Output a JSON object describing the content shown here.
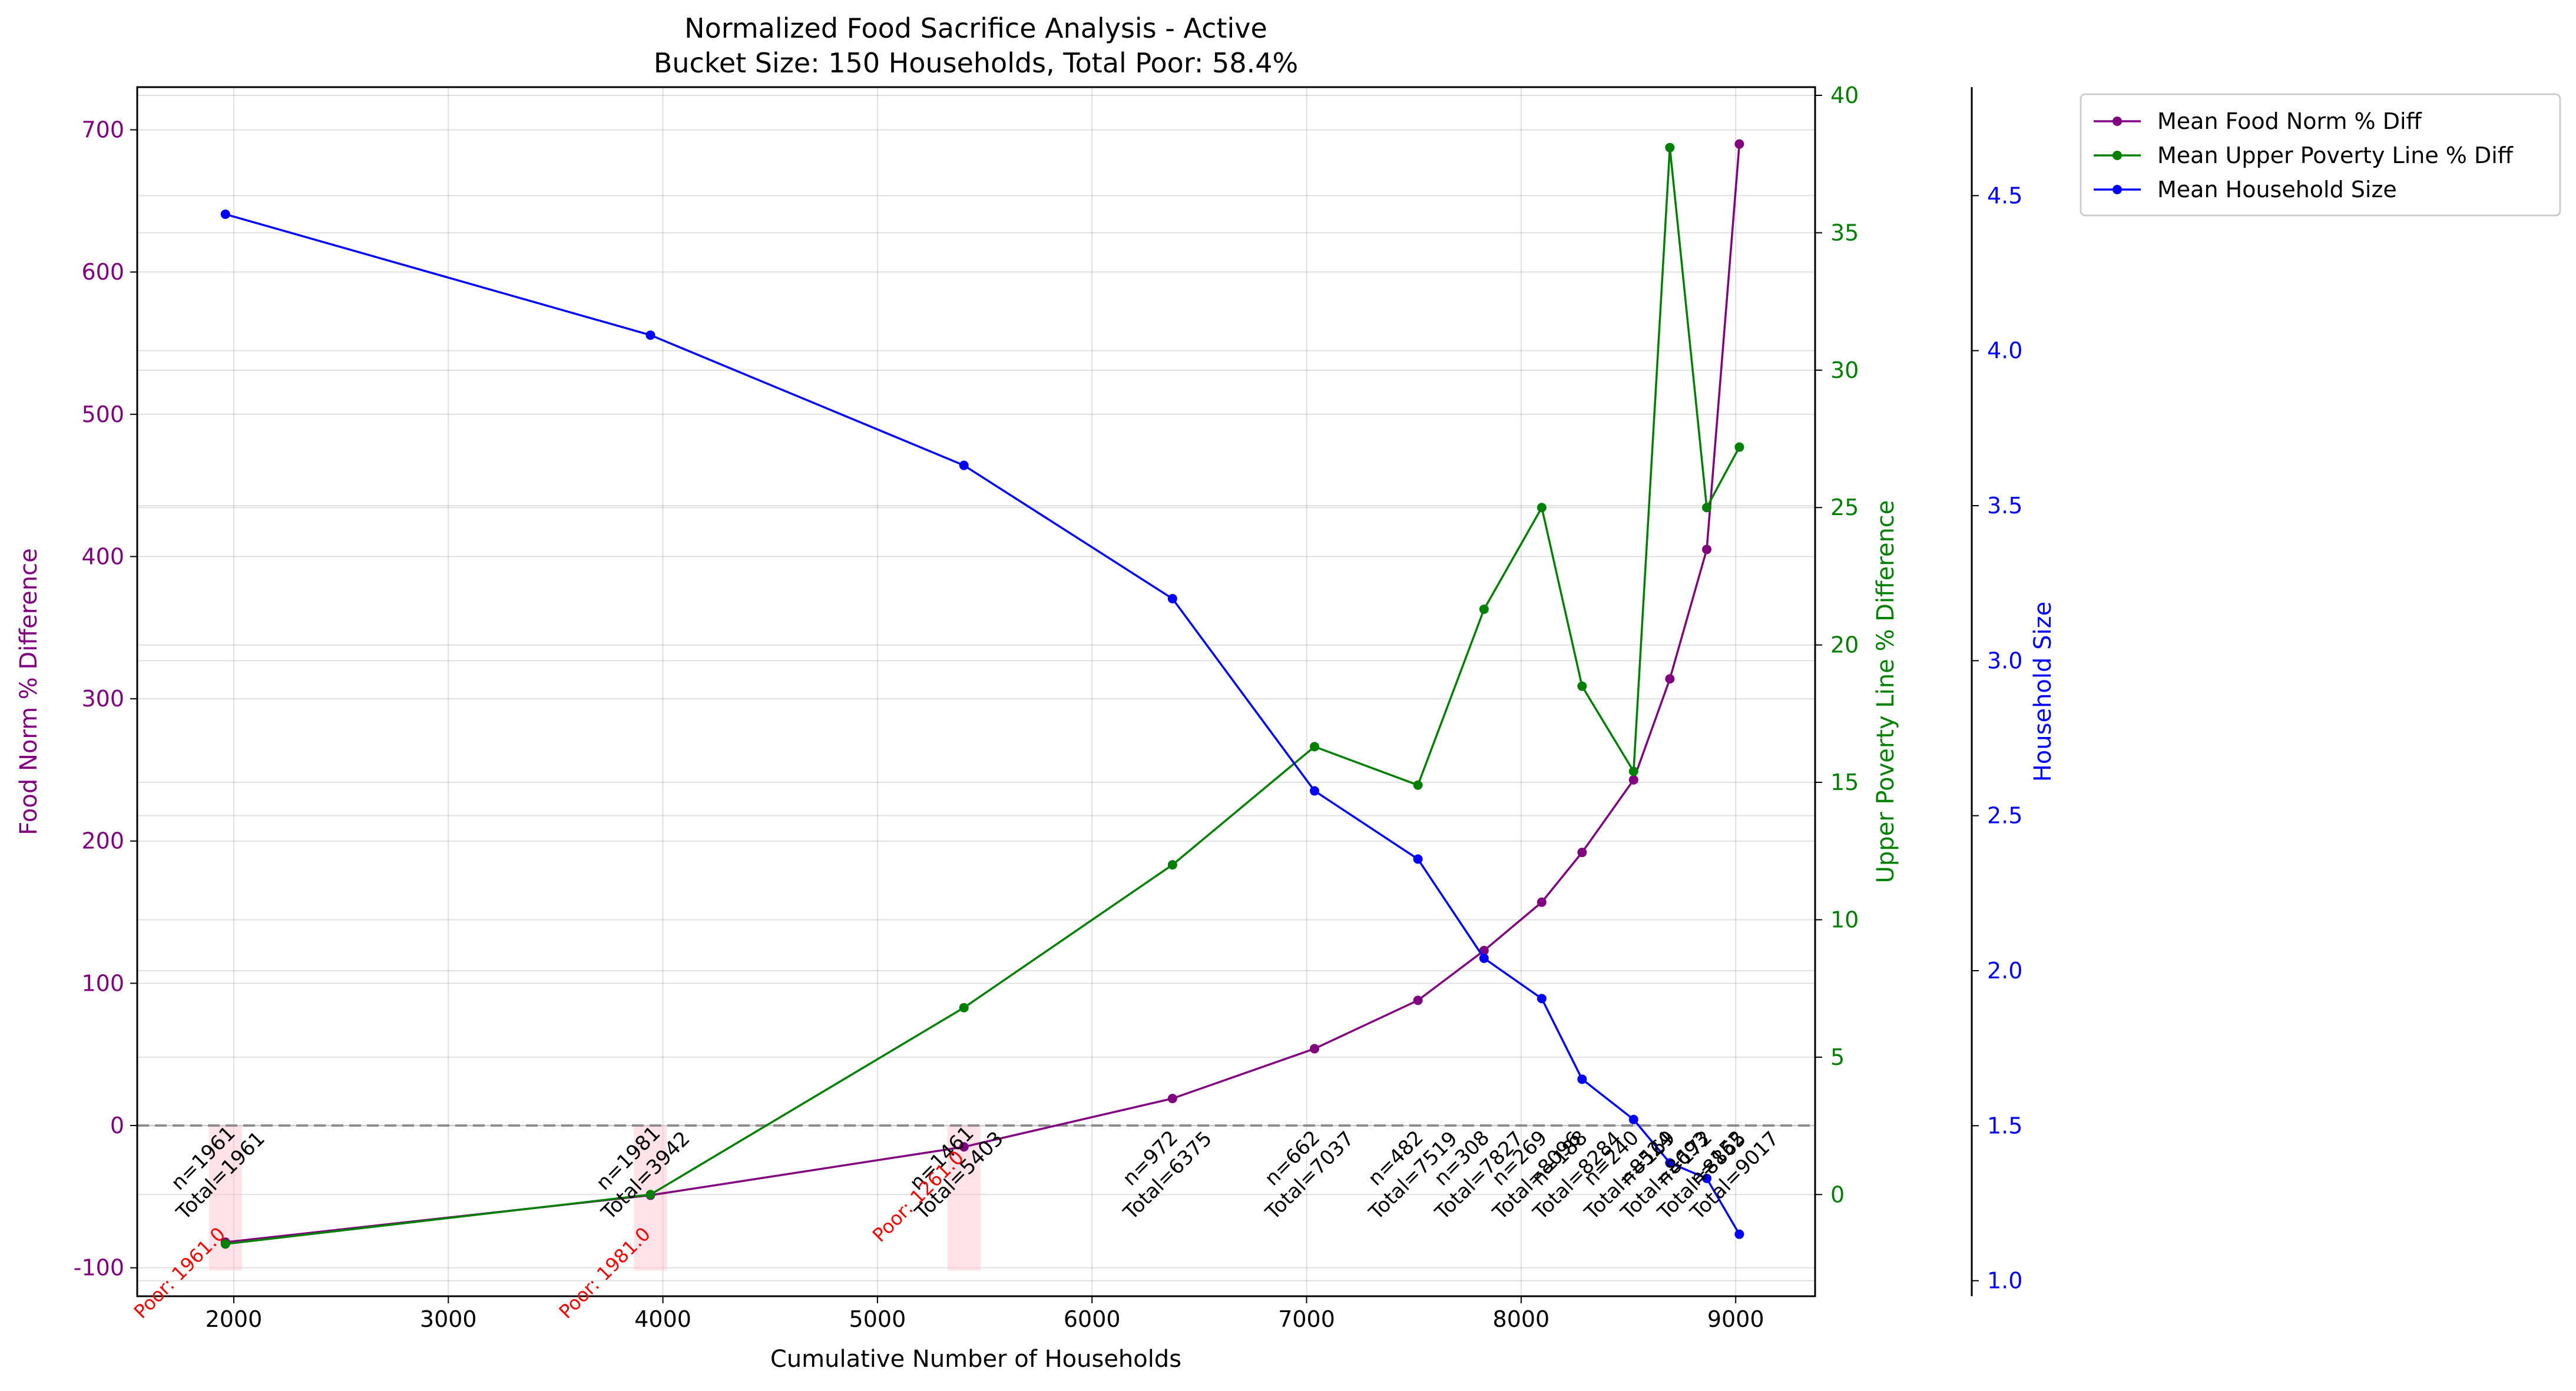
{
  "chart_data": {
    "type": "line",
    "title": "Normalized Food Sacrifice Analysis - Active",
    "subtitle": "Bucket Size: 150 Households, Total Poor: 58.4%",
    "xlabel": "Cumulative Number of Households",
    "xlim": [
      1550,
      9370
    ],
    "xticks": [
      2000,
      3000,
      4000,
      5000,
      6000,
      7000,
      8000,
      9000
    ],
    "x": [
      1961,
      3942,
      5403,
      6375,
      7037,
      7519,
      7827,
      8096,
      8284,
      8524,
      8693,
      8865,
      9017
    ],
    "axes": [
      {
        "id": "left",
        "label": "Food Norm % Difference",
        "color": "#800080",
        "ylim": [
          -120,
          730
        ],
        "ticks": [
          -100,
          0,
          100,
          200,
          300,
          400,
          500,
          600,
          700
        ]
      },
      {
        "id": "right1",
        "label": "Upper Poverty Line % Difference",
        "color": "#008000",
        "ylim": [
          -3.7,
          40.3
        ],
        "ticks": [
          0,
          5,
          10,
          15,
          20,
          25,
          30,
          35,
          40
        ]
      },
      {
        "id": "right2",
        "label": "Household Size",
        "color": "#0000ff",
        "ylim": [
          0.95,
          4.85
        ],
        "ticks": [
          "1.0",
          "1.5",
          "2.0",
          "2.5",
          "3.0",
          "3.5",
          "4.0",
          "4.5"
        ]
      }
    ],
    "series": [
      {
        "name": "Mean Food Norm % Diff",
        "axis": "left",
        "color": "#800080",
        "values": [
          -82,
          -49,
          -15,
          19,
          54,
          88,
          123,
          157,
          192,
          243,
          314,
          405,
          690
        ]
      },
      {
        "name": "Mean Upper Poverty Line % Diff",
        "axis": "right1",
        "color": "#008000",
        "values": [
          -1.8,
          0.0,
          6.8,
          12.0,
          16.3,
          14.9,
          21.3,
          25.0,
          18.5,
          15.4,
          38.1,
          25.0,
          27.2
        ]
      },
      {
        "name": "Mean Household Size",
        "axis": "right2",
        "color": "#0000ff",
        "values": [
          4.44,
          4.05,
          3.63,
          3.2,
          2.58,
          2.36,
          2.04,
          1.91,
          1.65,
          1.52,
          1.38,
          1.33,
          1.15
        ]
      }
    ],
    "reference_line": {
      "y": 0,
      "axis": "left",
      "style": "dashed",
      "color": "#808080"
    },
    "bucket_annotations": [
      {
        "x": 1961,
        "n": "n=1961",
        "total": "Total=1961"
      },
      {
        "x": 3942,
        "n": "n=1981",
        "total": "Total=3942"
      },
      {
        "x": 5403,
        "n": "n=1461",
        "total": "Total=5403"
      },
      {
        "x": 6375,
        "n": "n=972",
        "total": "Total=6375"
      },
      {
        "x": 7037,
        "n": "n=662",
        "total": "Total=7037"
      },
      {
        "x": 7519,
        "n": "n=482",
        "total": "Total=7519"
      },
      {
        "x": 7827,
        "n": "n=308",
        "total": "Total=7827"
      },
      {
        "x": 8096,
        "n": "n=269",
        "total": "Total=8096"
      },
      {
        "x": 8284,
        "n": "n=188",
        "total": "Total=8284"
      },
      {
        "x": 8524,
        "n": "n=240",
        "total": "Total=8524"
      },
      {
        "x": 8693,
        "n": "n=169",
        "total": "Total=8693"
      },
      {
        "x": 8865,
        "n": "n=172",
        "total": "Total=8865"
      },
      {
        "x": 9017,
        "n": "n=152",
        "total": "Total=9017"
      }
    ],
    "poor_annotations": [
      {
        "x": 1961,
        "text": "Poor: 1961.0"
      },
      {
        "x": 3942,
        "text": "Poor: 1981.0"
      },
      {
        "x": 5403,
        "text": "Poor: 1261.0"
      }
    ],
    "poor_color": "#ff0000",
    "poor_band_color": "#ffc0cb",
    "grid": true,
    "legend_position": "outside-top-right"
  }
}
